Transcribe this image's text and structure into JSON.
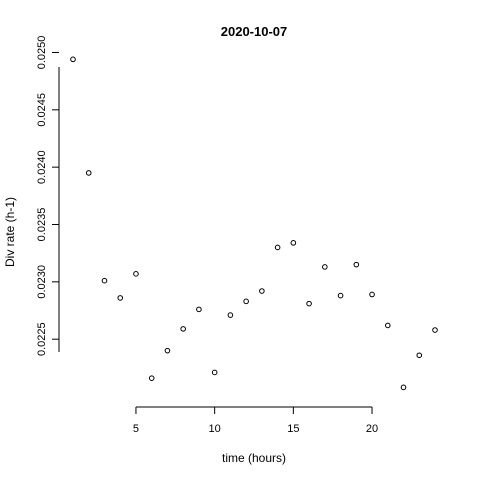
{
  "chart_data": {
    "type": "scatter",
    "title": "2020-10-07",
    "xlabel": "time (hours)",
    "ylabel": "Div rate (h-1)",
    "xlim": [
      1,
      24
    ],
    "ylim": [
      0.0219,
      0.0251
    ],
    "x_ticks": [
      5,
      10,
      15,
      20
    ],
    "x_tick_labels": [
      "5",
      "10",
      "15",
      "20"
    ],
    "y_ticks": [
      0.0225,
      0.023,
      0.0235,
      0.024,
      0.0245,
      0.025
    ],
    "y_tick_labels": [
      "0.0225",
      "0.0230",
      "0.0235",
      "0.0240",
      "0.0245",
      "0.0250"
    ],
    "grid": false,
    "x": [
      1,
      2,
      3,
      4,
      5,
      6,
      7,
      8,
      9,
      10,
      11,
      12,
      13,
      14,
      15,
      16,
      17,
      18,
      19,
      20,
      21,
      22,
      23,
      24
    ],
    "y": [
      0.02494,
      0.02395,
      0.02301,
      0.02286,
      0.02307,
      0.02216,
      0.0224,
      0.02259,
      0.02276,
      0.02221,
      0.02271,
      0.02283,
      0.02292,
      0.0233,
      0.02334,
      0.02281,
      0.02313,
      0.02288,
      0.02315,
      0.02289,
      0.02262,
      0.02208,
      0.02236,
      0.02258
    ]
  }
}
